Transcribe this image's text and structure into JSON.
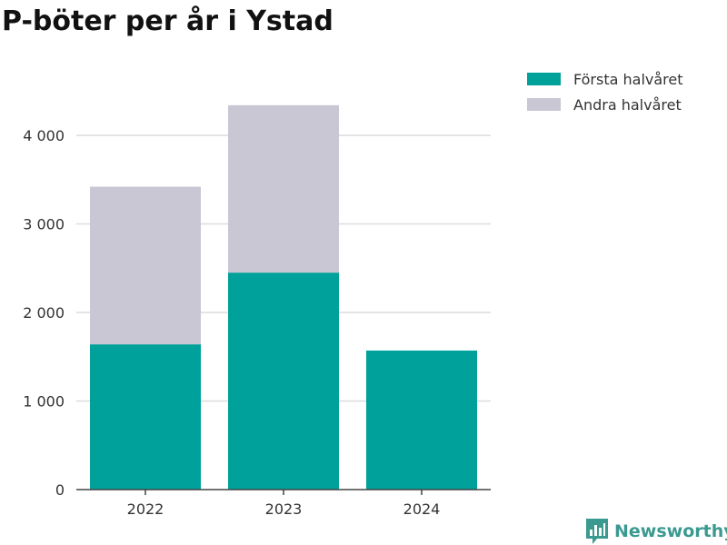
{
  "chart_data": {
    "type": "bar",
    "stacked": true,
    "title": "P-böter per år i Ystad",
    "categories": [
      "2022",
      "2023",
      "2024"
    ],
    "series": [
      {
        "name": "Första halvåret",
        "color": "#00a19a",
        "values": [
          1640,
          2450,
          1570
        ]
      },
      {
        "name": "Andra halvåret",
        "color": "#c8c7d3",
        "values": [
          1780,
          1890,
          null
        ]
      }
    ],
    "ylim": [
      0,
      4400
    ],
    "yticks": [
      0,
      1000,
      2000,
      3000,
      4000
    ],
    "ytick_labels": [
      "0",
      "1 000",
      "2 000",
      "3 000",
      "4 000"
    ],
    "grid": true,
    "legend_position": "top-right"
  },
  "branding": {
    "name": "Newsworthy",
    "color": "#3a9a90",
    "icon": "bar-chart-icon"
  }
}
